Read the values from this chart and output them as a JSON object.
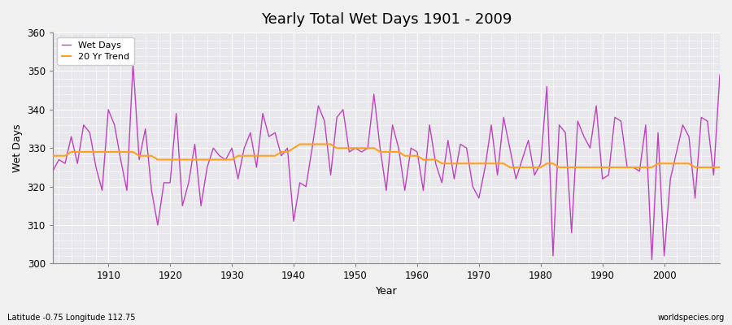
{
  "title": "Yearly Total Wet Days 1901 - 2009",
  "xlabel": "Year",
  "ylabel": "Wet Days",
  "subtitle": "Latitude -0.75 Longitude 112.75",
  "watermark": "worldspecies.org",
  "ylim": [
    300,
    360
  ],
  "xlim": [
    1901,
    2009
  ],
  "yticks": [
    300,
    310,
    320,
    330,
    340,
    350,
    360
  ],
  "xticks": [
    1910,
    1920,
    1930,
    1940,
    1950,
    1960,
    1970,
    1980,
    1990,
    2000
  ],
  "wet_days_color": "#bb44bb",
  "trend_color": "#ffa020",
  "fig_bg_color": "#f0f0f0",
  "plot_bg_color": "#e8e8ec",
  "years": [
    1901,
    1902,
    1903,
    1904,
    1905,
    1906,
    1907,
    1908,
    1909,
    1910,
    1911,
    1912,
    1913,
    1914,
    1915,
    1916,
    1917,
    1918,
    1919,
    1920,
    1921,
    1922,
    1923,
    1924,
    1925,
    1926,
    1927,
    1928,
    1929,
    1930,
    1931,
    1932,
    1933,
    1934,
    1935,
    1936,
    1937,
    1938,
    1939,
    1940,
    1941,
    1942,
    1943,
    1944,
    1945,
    1946,
    1947,
    1948,
    1949,
    1950,
    1951,
    1952,
    1953,
    1954,
    1955,
    1956,
    1957,
    1958,
    1959,
    1960,
    1961,
    1962,
    1963,
    1964,
    1965,
    1966,
    1967,
    1968,
    1969,
    1970,
    1971,
    1972,
    1973,
    1974,
    1975,
    1976,
    1977,
    1978,
    1979,
    1980,
    1981,
    1982,
    1983,
    1984,
    1985,
    1986,
    1987,
    1988,
    1989,
    1990,
    1991,
    1992,
    1993,
    1994,
    1995,
    1996,
    1997,
    1998,
    1999,
    2000,
    2001,
    2002,
    2003,
    2004,
    2005,
    2006,
    2007,
    2008,
    2009
  ],
  "wet_days": [
    324,
    327,
    326,
    333,
    326,
    336,
    334,
    325,
    319,
    340,
    336,
    327,
    319,
    352,
    327,
    335,
    319,
    310,
    321,
    321,
    339,
    315,
    321,
    331,
    315,
    325,
    330,
    328,
    327,
    330,
    322,
    330,
    334,
    325,
    339,
    333,
    334,
    328,
    330,
    311,
    321,
    320,
    330,
    341,
    337,
    323,
    338,
    340,
    329,
    330,
    329,
    330,
    344,
    330,
    319,
    336,
    330,
    319,
    330,
    329,
    319,
    336,
    326,
    321,
    332,
    322,
    331,
    330,
    320,
    317,
    325,
    336,
    323,
    338,
    330,
    322,
    327,
    332,
    323,
    326,
    346,
    302,
    336,
    334,
    308,
    337,
    333,
    330,
    341,
    322,
    323,
    338,
    337,
    325,
    325,
    324,
    336,
    301,
    334,
    302,
    322,
    329,
    336,
    333,
    317,
    338,
    337,
    323,
    349
  ],
  "trend": [
    328,
    328,
    328,
    329,
    329,
    329,
    329,
    329,
    329,
    329,
    329,
    329,
    329,
    329,
    328,
    328,
    328,
    327,
    327,
    327,
    327,
    327,
    327,
    327,
    327,
    327,
    327,
    327,
    327,
    327,
    328,
    328,
    328,
    328,
    328,
    328,
    328,
    329,
    329,
    330,
    331,
    331,
    331,
    331,
    331,
    331,
    330,
    330,
    330,
    330,
    330,
    330,
    330,
    329,
    329,
    329,
    329,
    328,
    328,
    328,
    327,
    327,
    327,
    326,
    326,
    326,
    326,
    326,
    326,
    326,
    326,
    326,
    326,
    326,
    325,
    325,
    325,
    325,
    325,
    325,
    326,
    326,
    325,
    325,
    325,
    325,
    325,
    325,
    325,
    325,
    325,
    325,
    325,
    325,
    325,
    325,
    325,
    325,
    326,
    326,
    326,
    326,
    326,
    326,
    325,
    325,
    325,
    325,
    325
  ]
}
